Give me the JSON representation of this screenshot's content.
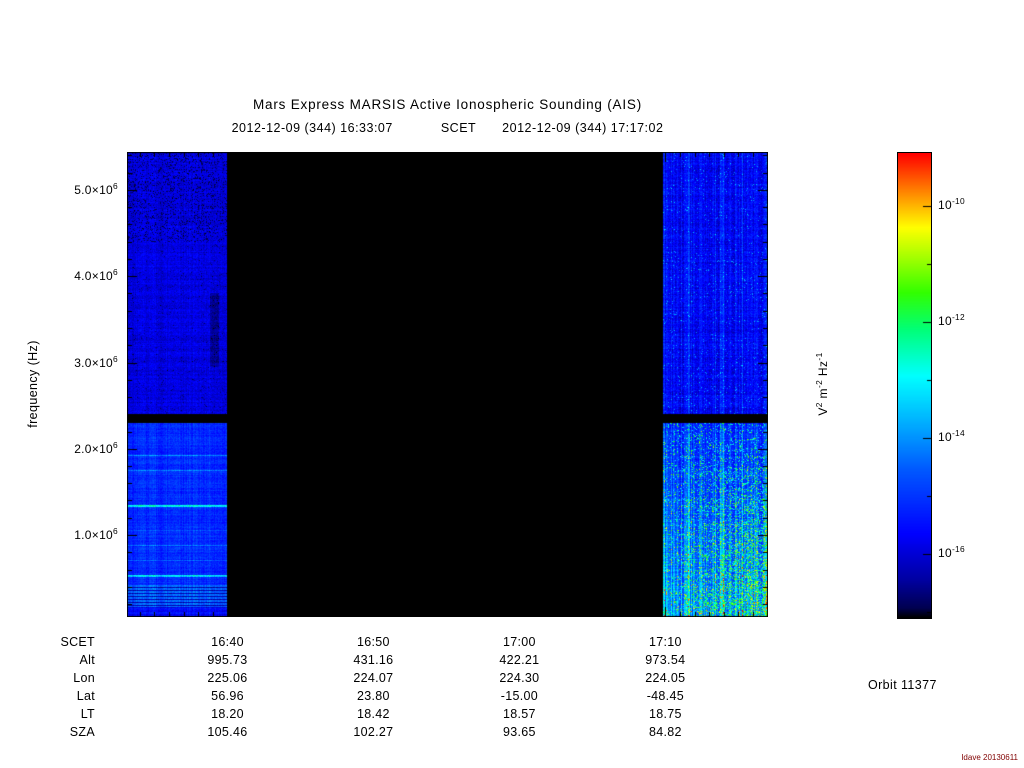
{
  "title": "Mars Express MARSIS Active Ionospheric Sounding (AIS)",
  "subtitle": {
    "start": "2012-12-09 (344) 16:33:07",
    "label": "SCET",
    "end": "2012-12-09 (344) 17:17:02"
  },
  "orbit_label": "Orbit 11377",
  "credit": "Idave 20130611",
  "chart_data": {
    "type": "heatmap",
    "title": "Mars Express MARSIS Active Ionospheric Sounding (AIS)",
    "date": "2012-12-09 (344)",
    "time_start": "16:33:07",
    "time_end": "17:17:02",
    "ylabel": "frequency (Hz)",
    "freq_range_hz": [
      100000,
      5450000
    ],
    "y_ticks": [
      {
        "freq_hz": 1000000,
        "label": "1.0×10^6"
      },
      {
        "freq_hz": 2000000,
        "label": "2.0×10^6"
      },
      {
        "freq_hz": 3000000,
        "label": "3.0×10^6"
      },
      {
        "freq_hz": 4000000,
        "label": "4.0×10^6"
      },
      {
        "freq_hz": 5000000,
        "label": "5.0×10^6"
      }
    ],
    "x_ticks": [
      "16:40",
      "16:50",
      "17:00",
      "17:10"
    ],
    "segments": [
      {
        "name": "active-left",
        "start": "16:33:07",
        "end": "16:40:00",
        "style": "blue-noise"
      },
      {
        "name": "no-data",
        "start": "16:40:00",
        "end": "17:09:50",
        "style": "black"
      },
      {
        "name": "active-right",
        "start": "17:09:50",
        "end": "17:17:02",
        "style": "blue-green-noise"
      }
    ],
    "interference_gap_hz": [
      2300000,
      2400000
    ],
    "colorbar": {
      "label": "V^2 m^-2 Hz^-1",
      "scale": "log",
      "ticks": [
        {
          "exp": -10,
          "label": "10^-10"
        },
        {
          "exp": -12,
          "label": "10^-12"
        },
        {
          "exp": -14,
          "label": "10^-14"
        },
        {
          "exp": -16,
          "label": "10^-16"
        }
      ],
      "colors_bottom_to_top": [
        "#000000",
        "#000080",
        "#0000ff",
        "#00c8ff",
        "#00ffff",
        "#00ff78",
        "#32ff00",
        "#aaff00",
        "#ffff00",
        "#ffa000",
        "#ff5000",
        "#ff0000"
      ]
    },
    "table": {
      "row_labels": [
        "SCET",
        "Alt",
        "Lon",
        "Lat",
        "LT",
        "SZA"
      ],
      "columns": [
        "16:40",
        "16:50",
        "17:00",
        "17:10"
      ],
      "rows": [
        {
          "label": "SCET",
          "values": [
            "16:40",
            "16:50",
            "17:00",
            "17:10"
          ]
        },
        {
          "label": "Alt",
          "values": [
            "995.73",
            "431.16",
            "422.21",
            "973.54"
          ]
        },
        {
          "label": "Lon",
          "values": [
            "225.06",
            "224.07",
            "224.30",
            "224.05"
          ]
        },
        {
          "label": "Lat",
          "values": [
            "56.96",
            "23.80",
            "-15.00",
            "-48.45"
          ]
        },
        {
          "label": "LT",
          "values": [
            "18.20",
            "18.42",
            "18.57",
            "18.75"
          ]
        },
        {
          "label": "SZA",
          "values": [
            "105.46",
            "102.27",
            "93.65",
            "84.82"
          ]
        }
      ]
    }
  }
}
